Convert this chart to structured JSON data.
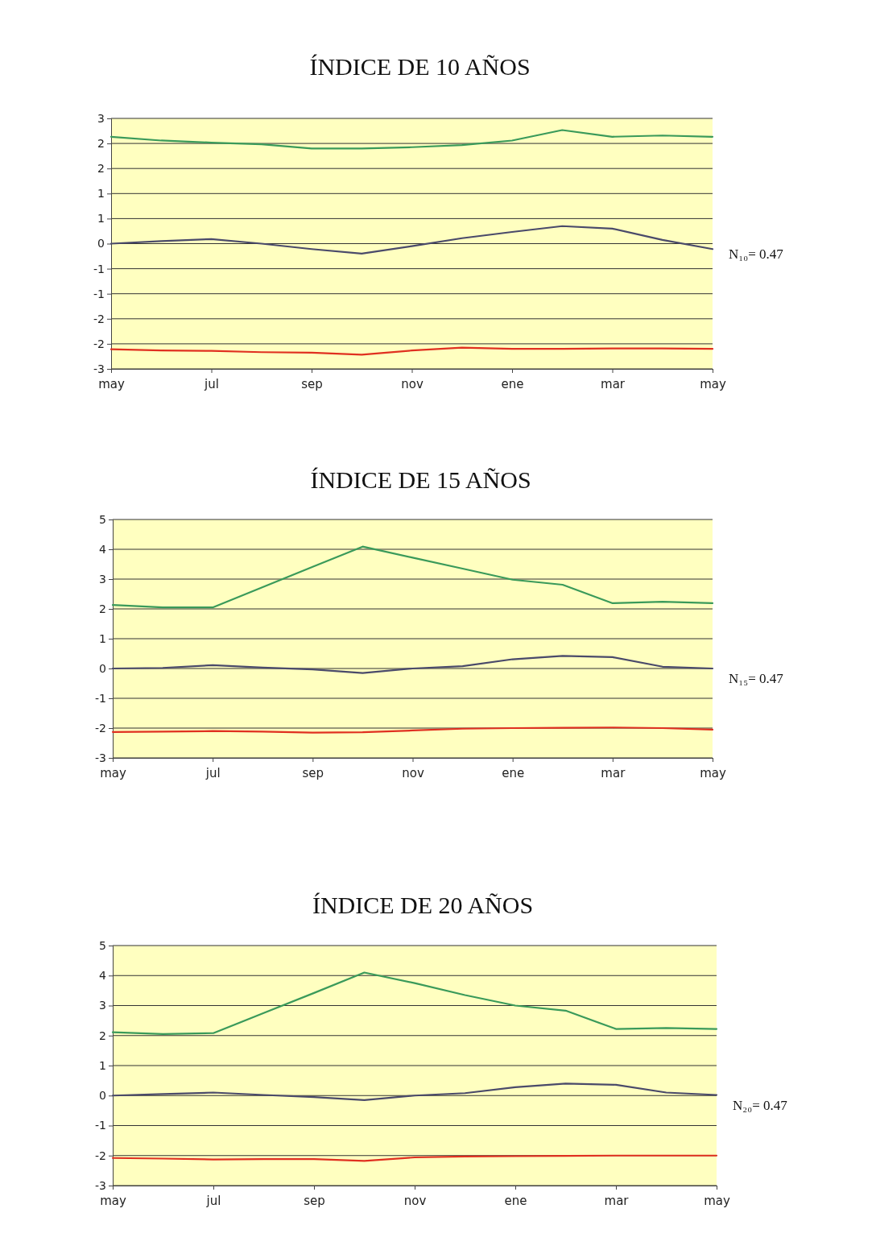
{
  "chart_data": [
    {
      "type": "line",
      "title": "ÍNDICE DE 10 AÑOS",
      "categories": [
        "may",
        null,
        "jul",
        null,
        "sep",
        null,
        "nov",
        null,
        "ene",
        null,
        "mar",
        null,
        "may"
      ],
      "ylim": [
        -3,
        3
      ],
      "yticks": [
        {
          "value": -3,
          "label": "-3"
        },
        {
          "value": -2.4,
          "label": "-2"
        },
        {
          "value": -1.8,
          "label": "-2"
        },
        {
          "value": -1.2,
          "label": "-1"
        },
        {
          "value": -0.6,
          "label": "-1"
        },
        {
          "value": 0,
          "label": "0"
        },
        {
          "value": 0.6,
          "label": "1"
        },
        {
          "value": 1.2,
          "label": "1"
        },
        {
          "value": 1.8,
          "label": "2"
        },
        {
          "value": 2.4,
          "label": "2"
        },
        {
          "value": 3,
          "label": "3"
        }
      ],
      "grid": "y",
      "annotations": [
        "N₁₀= 0.47"
      ],
      "series": [
        {
          "color": "#3a9a5a",
          "values": [
            2.56,
            2.47,
            2.42,
            2.38,
            2.28,
            2.28,
            2.31,
            2.36,
            2.47,
            2.72,
            2.56,
            2.59,
            2.56
          ]
        },
        {
          "color": "#4a4a6a",
          "values": [
            0,
            0.06,
            0.11,
            0,
            -0.13,
            -0.24,
            -0.06,
            0.13,
            0.28,
            0.42,
            0.36,
            0.09,
            -0.13
          ]
        },
        {
          "color": "#e03020",
          "values": [
            -2.53,
            -2.56,
            -2.57,
            -2.6,
            -2.61,
            -2.66,
            -2.56,
            -2.49,
            -2.52,
            -2.52,
            -2.51,
            -2.51,
            -2.52
          ]
        }
      ]
    },
    {
      "type": "line",
      "title": "ÍNDICE DE 15 AÑOS",
      "categories": [
        "may",
        null,
        "jul",
        null,
        "sep",
        null,
        "nov",
        null,
        "ene",
        null,
        "mar",
        null,
        "may"
      ],
      "ylim": [
        -3,
        5
      ],
      "yticks": [
        -3,
        -2,
        -1,
        0,
        1,
        2,
        3,
        4,
        5
      ],
      "grid": "y",
      "annotations": [
        "N₁₅= 0.47"
      ],
      "series": [
        {
          "color": "#3a9a5a",
          "values": [
            2.13,
            2.05,
            2.05,
            2.73,
            3.41,
            4.09,
            3.72,
            3.35,
            2.98,
            2.81,
            2.19,
            2.24,
            2.19
          ]
        },
        {
          "color": "#4a4a6a",
          "values": [
            0,
            0.02,
            0.11,
            0.03,
            -0.03,
            -0.15,
            0,
            0.08,
            0.31,
            0.42,
            0.38,
            0.06,
            0
          ]
        },
        {
          "color": "#e03020",
          "values": [
            -2.13,
            -2.12,
            -2.1,
            -2.12,
            -2.15,
            -2.14,
            -2.08,
            -2.02,
            -2,
            -1.99,
            -1.98,
            -2,
            -2.05
          ]
        }
      ]
    },
    {
      "type": "line",
      "title": "ÍNDICE DE 20 AÑOS",
      "categories": [
        "may",
        null,
        "jul",
        null,
        "sep",
        null,
        "nov",
        null,
        "ene",
        null,
        "mar",
        null,
        "may"
      ],
      "ylim": [
        -3,
        5
      ],
      "yticks": [
        -3,
        -2,
        -1,
        0,
        1,
        2,
        3,
        4,
        5
      ],
      "grid": "y",
      "annotations": [
        "N₂₀= 0.47"
      ],
      "series": [
        {
          "color": "#3a9a5a",
          "values": [
            2.11,
            2.05,
            2.08,
            2.75,
            3.42,
            4.1,
            3.75,
            3.35,
            3,
            2.83,
            2.22,
            2.25,
            2.22
          ]
        },
        {
          "color": "#4a4a6a",
          "values": [
            0,
            0.05,
            0.1,
            0.02,
            -0.05,
            -0.15,
            0,
            0.08,
            0.28,
            0.4,
            0.36,
            0.1,
            0.02
          ]
        },
        {
          "color": "#e03020",
          "values": [
            -2.08,
            -2.1,
            -2.13,
            -2.12,
            -2.12,
            -2.18,
            -2.06,
            -2.03,
            -2.02,
            -2.01,
            -2,
            -2,
            -2
          ]
        }
      ]
    }
  ]
}
